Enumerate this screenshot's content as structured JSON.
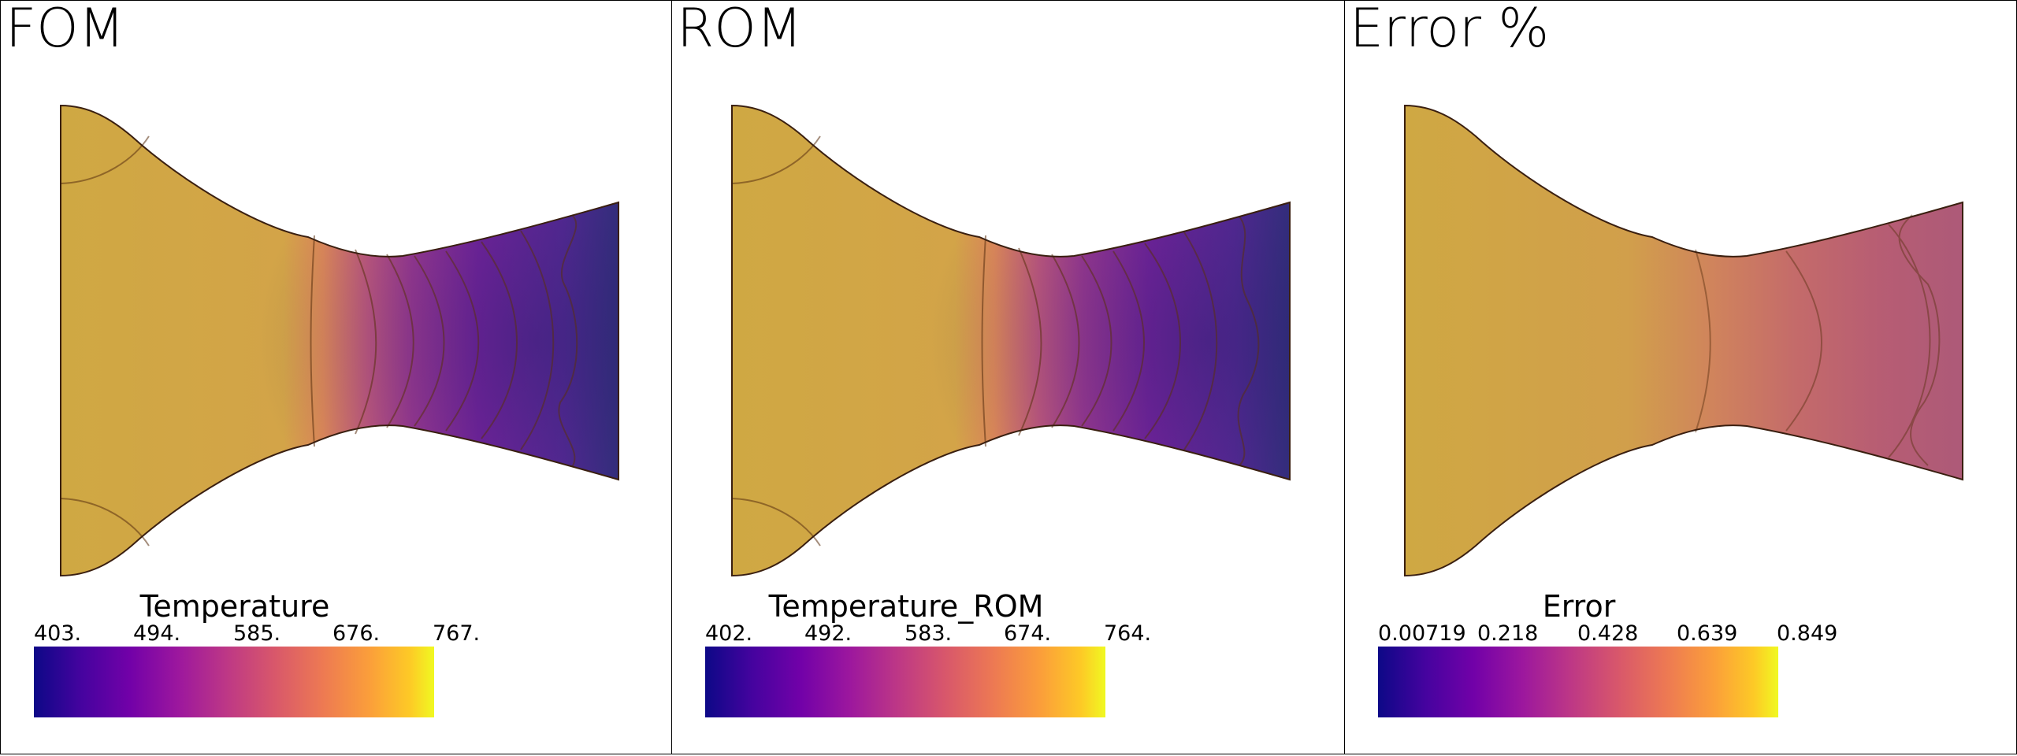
{
  "panels": [
    {
      "title": "FOM",
      "colorbar": {
        "title": "Temperature",
        "ticks": [
          "403.",
          "494.",
          "585.",
          "676.",
          "767."
        ]
      }
    },
    {
      "title": "ROM",
      "colorbar": {
        "title": "Temperature_ROM",
        "ticks": [
          "402.",
          "492.",
          "583.",
          "674.",
          "764."
        ]
      }
    },
    {
      "title": "Error %",
      "colorbar": {
        "title": "Error",
        "ticks": [
          "0.00719",
          "0.218",
          "0.428",
          "0.639",
          "0.849"
        ]
      }
    }
  ],
  "colors": {
    "inlet": "#cfa843",
    "outlet_temperature": "#3c2a8a",
    "outlet_error": "#b05a78",
    "contour_stroke": "#5a3010",
    "outline": "#3a1f10"
  },
  "colormap": "plasma"
}
